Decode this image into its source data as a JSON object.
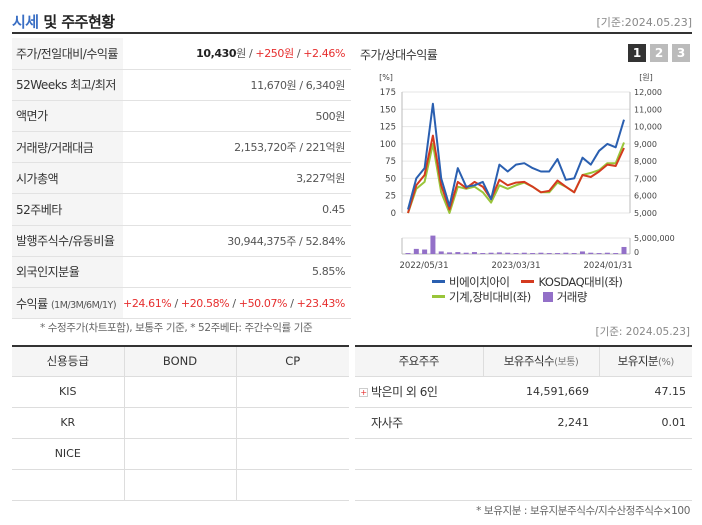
{
  "header": {
    "title_accent": "시세",
    "title_rest": " 및 주주현황",
    "ref_date": "[기준:2024.05.23]"
  },
  "quote": {
    "rows": [
      {
        "label": "주가/전일대비/수익률",
        "price": "10,430",
        "unit": "원",
        "sep1": " / ",
        "change": "+250원",
        "sep2": " / ",
        "rate": "+2.46%"
      },
      {
        "label": "52Weeks 최고/최저",
        "value": "11,670원 / 6,340원"
      },
      {
        "label": "액면가",
        "value": "500원"
      },
      {
        "label": "거래량/거래대금",
        "value": "2,153,720주 / 221억원"
      },
      {
        "label": "시가총액",
        "value": "3,227억원"
      },
      {
        "label": "52주베타",
        "value": "0.45"
      },
      {
        "label": "발행주식수/유동비율",
        "value": "30,944,375주 / 52.84%"
      },
      {
        "label": "외국인지분율",
        "value": "5.85%"
      }
    ],
    "returns": {
      "label": "수익률",
      "sublabel": "(1M/3M/6M/1Y)",
      "r1": "+24.61%",
      "r2": "+20.58%",
      "r3": "+50.07%",
      "r4": "+23.43%",
      "sep": " / "
    }
  },
  "footnote_left": "* 수정주가(차트포함), 보통주 기준, * 52주베타: 주간수익률 기준",
  "ref_date2": "[기준: 2024.05.23]",
  "chart_panel": {
    "title": "주가/상대수익률",
    "tabs": [
      "1",
      "2",
      "3"
    ]
  },
  "chart_data": {
    "type": "line",
    "left_axis_unit": "[%]",
    "right_axis_unit": "[원]",
    "left_ticks": [
      "175",
      "150",
      "125",
      "100",
      "75",
      "50",
      "25",
      "0"
    ],
    "right_ticks": [
      "12,000",
      "11,000",
      "10,000",
      "9,000",
      "8,000",
      "7,000",
      "6,000",
      "5,000"
    ],
    "volume_tick": "5,000,000",
    "volume_zero": "0",
    "x_labels": [
      "2022/05/31",
      "2023/03/31",
      "2024/01/31"
    ],
    "ylim_left": [
      0,
      175
    ],
    "ylim_right": [
      5000,
      12000
    ],
    "series": [
      {
        "name": "비에이치아이",
        "color": "#2a5fb0",
        "values": [
          5,
          50,
          65,
          158,
          50,
          10,
          65,
          38,
          40,
          45,
          20,
          70,
          60,
          70,
          72,
          65,
          60,
          60,
          78,
          48,
          50,
          80,
          70,
          90,
          100,
          95,
          135
        ]
      },
      {
        "name": "KOSDAQ대비(좌)",
        "color": "#d43a1f",
        "values": [
          0,
          40,
          55,
          112,
          40,
          5,
          45,
          36,
          45,
          38,
          20,
          48,
          40,
          44,
          45,
          38,
          30,
          32,
          47,
          38,
          30,
          55,
          52,
          60,
          70,
          68,
          94
        ]
      },
      {
        "name": "기계,장비대비(좌)",
        "color": "#99c53a",
        "values": [
          0,
          35,
          45,
          100,
          30,
          0,
          38,
          35,
          38,
          30,
          15,
          40,
          35,
          40,
          44,
          38,
          30,
          30,
          44,
          38,
          30,
          55,
          58,
          62,
          72,
          72,
          102
        ]
      }
    ],
    "volume": {
      "name": "거래량",
      "color": "#9370c8",
      "values": [
        0.3,
        1.6,
        1.4,
        5.8,
        0.8,
        0.5,
        0.6,
        0.4,
        0.6,
        0.3,
        0.4,
        0.5,
        0.4,
        0.3,
        0.4,
        0.3,
        0.4,
        0.3,
        0.3,
        0.4,
        0.3,
        0.8,
        0.4,
        0.3,
        0.4,
        0.3,
        2.2
      ]
    }
  },
  "legend": {
    "items": [
      "비에이치아이",
      "KOSDAQ대비(좌)",
      "기계,장비대비(좌)",
      "거래량"
    ]
  },
  "credit": {
    "headers": [
      "신용등급",
      "BOND",
      "CP"
    ],
    "rows": [
      [
        "KIS",
        "",
        ""
      ],
      [
        "KR",
        "",
        ""
      ],
      [
        "NICE",
        "",
        ""
      ],
      [
        "",
        "",
        ""
      ]
    ]
  },
  "holders": {
    "headers": {
      "h1": "주요주주",
      "h2": "보유주식수",
      "h2_unit": "(보통)",
      "h3": "보유지분",
      "h3_unit": "(%)"
    },
    "rows": [
      {
        "name": "박은미 외 6인",
        "shares": "14,591,669",
        "pct": "47.15"
      },
      {
        "name": "자사주",
        "shares": "2,241",
        "pct": "0.01"
      },
      {
        "name": "",
        "shares": "",
        "pct": ""
      },
      {
        "name": "",
        "shares": "",
        "pct": ""
      }
    ]
  },
  "footnote_right": "* 보유지분 : 보유지분주식수/지수산정주식수×100"
}
